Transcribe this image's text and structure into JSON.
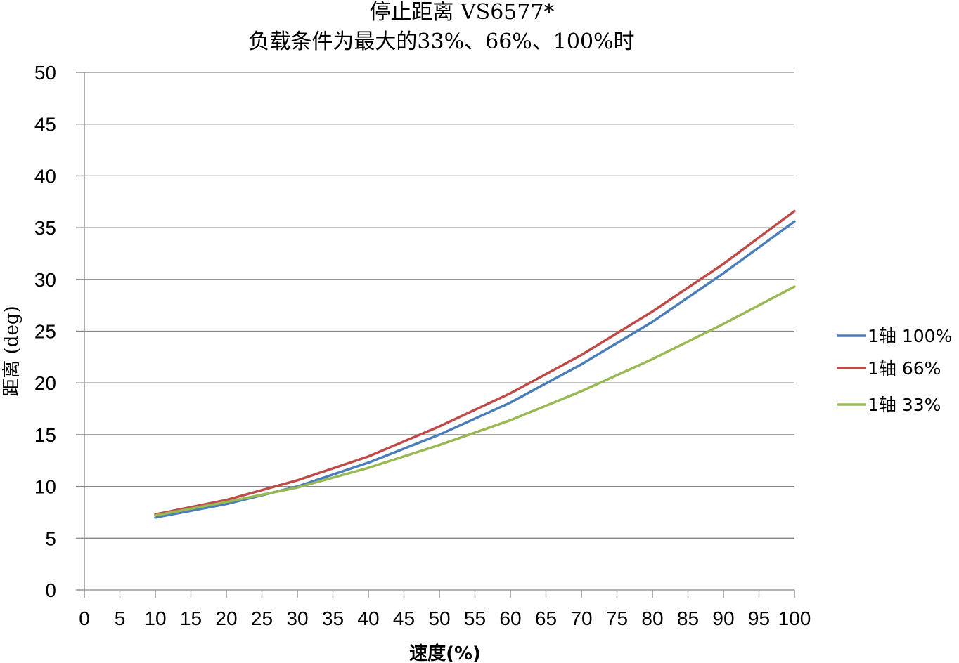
{
  "chart_data": {
    "type": "line",
    "title": "停止距离 VS6577*",
    "subtitle": "负载条件为最大的33%、66%、100%时",
    "xlabel": "速度(%)",
    "ylabel": "距离 (deg)",
    "xlim": [
      0,
      100
    ],
    "ylim": [
      0,
      50
    ],
    "x_ticks": [
      0,
      5,
      10,
      15,
      20,
      25,
      30,
      35,
      40,
      45,
      50,
      55,
      60,
      65,
      70,
      75,
      80,
      85,
      90,
      95,
      100
    ],
    "y_ticks": [
      0,
      5,
      10,
      15,
      20,
      25,
      30,
      35,
      40,
      45,
      50
    ],
    "grid": "horizontal",
    "legend_position": "right",
    "x": [
      10,
      20,
      30,
      40,
      50,
      60,
      70,
      80,
      90,
      100
    ],
    "series": [
      {
        "name": "1轴 100%",
        "color": "#4a7ebb",
        "values": [
          7.0,
          8.3,
          10.0,
          12.3,
          15.0,
          18.1,
          21.8,
          25.9,
          30.6,
          35.6
        ]
      },
      {
        "name": "1轴 66%",
        "color": "#be4b48",
        "values": [
          7.3,
          8.7,
          10.6,
          12.9,
          15.8,
          19.0,
          22.7,
          26.9,
          31.5,
          36.6
        ]
      },
      {
        "name": "1轴 33%",
        "color": "#98b954",
        "values": [
          7.2,
          8.5,
          9.9,
          11.8,
          14.0,
          16.4,
          19.2,
          22.3,
          25.7,
          29.3
        ]
      }
    ]
  }
}
